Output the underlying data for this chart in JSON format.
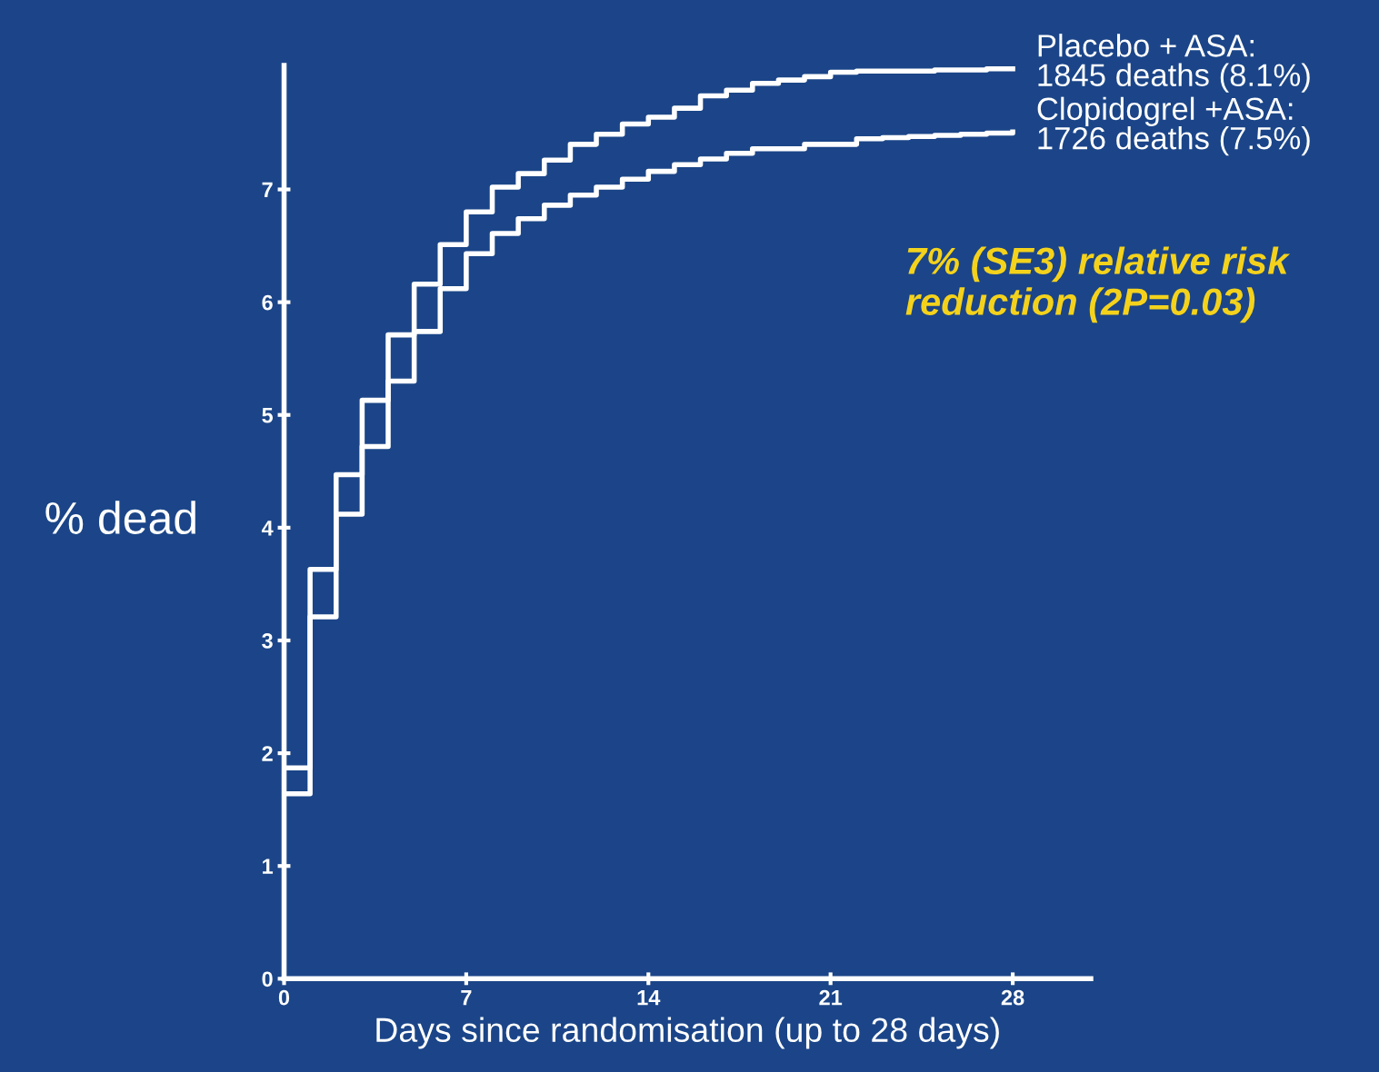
{
  "chart_data": {
    "type": "step",
    "xlabel": "Days since randomisation (up to 28 days)",
    "ylabel": "% dead",
    "x": [
      0,
      1,
      2,
      3,
      4,
      5,
      6,
      7,
      8,
      9,
      10,
      11,
      12,
      13,
      14,
      15,
      16,
      17,
      18,
      19,
      20,
      21,
      22,
      23,
      24,
      25,
      26,
      27,
      28
    ],
    "series": [
      {
        "name": "Placebo + ASA:\n1845 deaths (8.1%)",
        "color": "#ffffff",
        "values": [
          1.87,
          3.63,
          4.47,
          5.13,
          5.71,
          6.16,
          6.51,
          6.8,
          7.02,
          7.14,
          7.26,
          7.4,
          7.49,
          7.58,
          7.64,
          7.72,
          7.83,
          7.88,
          7.94,
          7.97,
          8.0,
          8.04,
          8.05,
          8.05,
          8.05,
          8.06,
          8.06,
          8.07,
          8.07
        ]
      },
      {
        "name": "Clopidogrel +ASA:\n1726 deaths (7.5%)",
        "color": "#ffffff",
        "values": [
          1.64,
          3.21,
          4.12,
          4.72,
          5.3,
          5.74,
          6.12,
          6.43,
          6.61,
          6.74,
          6.86,
          6.95,
          7.02,
          7.09,
          7.16,
          7.22,
          7.27,
          7.32,
          7.36,
          7.36,
          7.4,
          7.4,
          7.45,
          7.46,
          7.47,
          7.48,
          7.49,
          7.5,
          7.51
        ]
      }
    ],
    "xlim": [
      0,
      31
    ],
    "xticks": [
      0,
      7,
      14,
      21,
      28
    ],
    "ylim": [
      0,
      8.1
    ],
    "yticks": [
      0,
      1,
      2,
      3,
      4,
      5,
      6,
      7
    ],
    "annotations": [
      "7% (SE3) relative risk reduction (2P=0.03)"
    ],
    "grid": false,
    "legend": false,
    "line_style": "solid"
  }
}
